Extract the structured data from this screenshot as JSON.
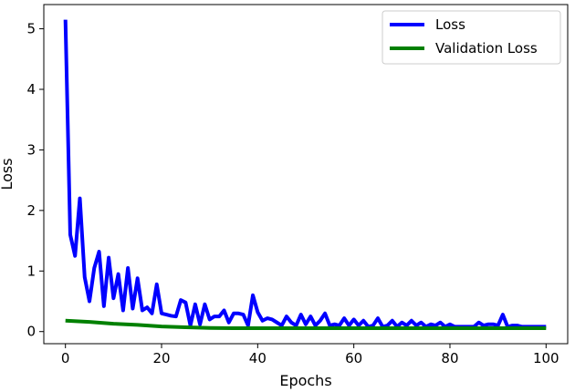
{
  "chart_data": {
    "type": "line",
    "xlabel": "Epochs",
    "ylabel": "Loss",
    "xlim": [
      -4.5,
      104.5
    ],
    "ylim": [
      -0.2,
      5.4
    ],
    "xticks": [
      0,
      20,
      40,
      60,
      80,
      100
    ],
    "yticks": [
      0,
      1,
      2,
      3,
      4,
      5
    ],
    "grid": false,
    "legend_position": "top-right",
    "series": [
      {
        "name": "Loss",
        "color": "#0000ff",
        "x": [
          0,
          1,
          2,
          3,
          4,
          5,
          6,
          7,
          8,
          9,
          10,
          11,
          12,
          13,
          14,
          15,
          16,
          17,
          18,
          19,
          20,
          21,
          22,
          23,
          24,
          25,
          26,
          27,
          28,
          29,
          30,
          31,
          32,
          33,
          34,
          35,
          36,
          37,
          38,
          39,
          40,
          41,
          42,
          43,
          44,
          45,
          46,
          47,
          48,
          49,
          50,
          51,
          52,
          53,
          54,
          55,
          56,
          57,
          58,
          59,
          60,
          61,
          62,
          63,
          64,
          65,
          66,
          67,
          68,
          69,
          70,
          71,
          72,
          73,
          74,
          75,
          76,
          77,
          78,
          79,
          80,
          81,
          82,
          83,
          84,
          85,
          86,
          87,
          88,
          89,
          90,
          91,
          92,
          93,
          94,
          95,
          96,
          97,
          98,
          99,
          100
        ],
        "values": [
          5.15,
          1.6,
          1.25,
          2.2,
          0.9,
          0.5,
          1.05,
          1.32,
          0.42,
          1.22,
          0.55,
          0.95,
          0.35,
          1.05,
          0.38,
          0.88,
          0.35,
          0.4,
          0.3,
          0.78,
          0.3,
          0.28,
          0.26,
          0.25,
          0.52,
          0.48,
          0.1,
          0.45,
          0.12,
          0.45,
          0.2,
          0.25,
          0.25,
          0.35,
          0.15,
          0.3,
          0.3,
          0.28,
          0.1,
          0.6,
          0.32,
          0.18,
          0.22,
          0.2,
          0.15,
          0.1,
          0.25,
          0.15,
          0.1,
          0.28,
          0.12,
          0.25,
          0.1,
          0.18,
          0.3,
          0.1,
          0.12,
          0.1,
          0.22,
          0.1,
          0.2,
          0.1,
          0.18,
          0.08,
          0.1,
          0.22,
          0.08,
          0.1,
          0.18,
          0.08,
          0.15,
          0.1,
          0.18,
          0.1,
          0.15,
          0.08,
          0.12,
          0.1,
          0.15,
          0.08,
          0.12,
          0.08,
          0.08,
          0.08,
          0.08,
          0.08,
          0.15,
          0.1,
          0.12,
          0.12,
          0.1,
          0.28,
          0.08,
          0.1,
          0.1,
          0.08,
          0.08,
          0.08,
          0.08,
          0.08,
          0.08
        ]
      },
      {
        "name": "Validation Loss",
        "color": "#008000",
        "x": [
          0,
          5,
          10,
          15,
          20,
          25,
          30,
          35,
          40,
          45,
          50,
          55,
          60,
          65,
          70,
          75,
          80,
          85,
          90,
          95,
          100
        ],
        "values": [
          0.18,
          0.16,
          0.13,
          0.11,
          0.085,
          0.07,
          0.06,
          0.055,
          0.055,
          0.055,
          0.055,
          0.055,
          0.055,
          0.055,
          0.055,
          0.055,
          0.055,
          0.055,
          0.055,
          0.055,
          0.055
        ]
      }
    ]
  }
}
